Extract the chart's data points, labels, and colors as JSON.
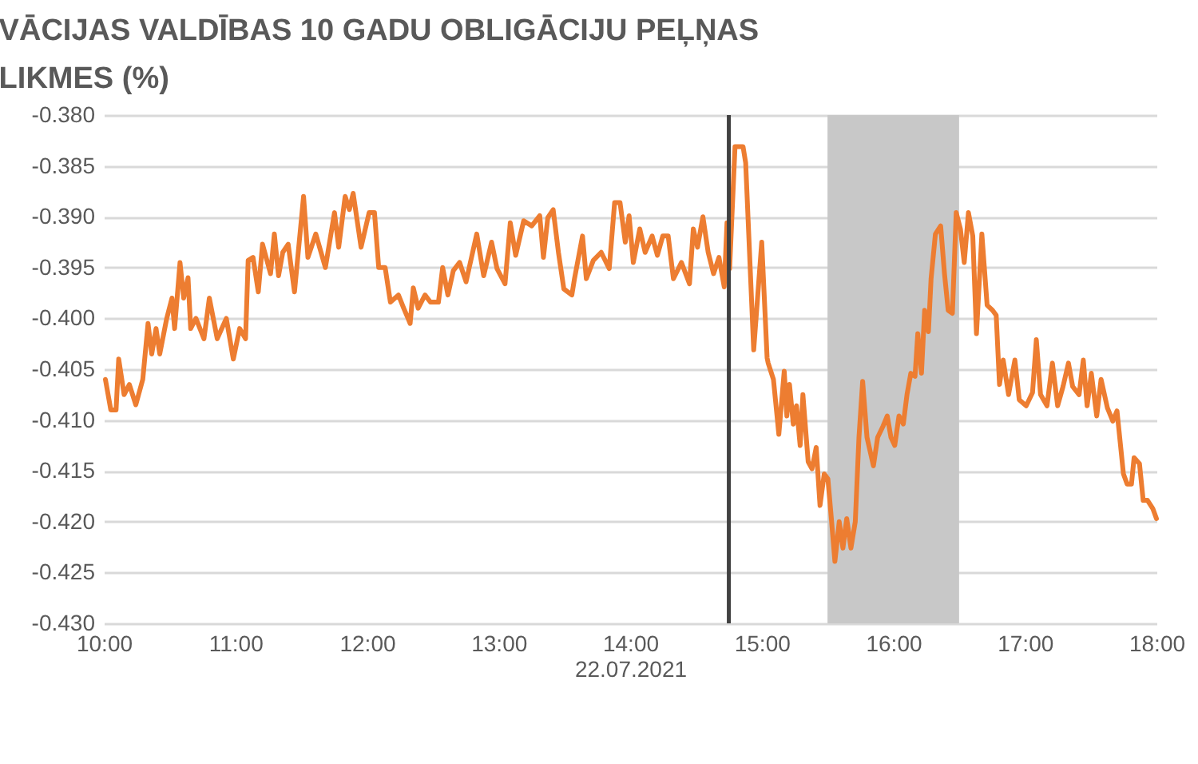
{
  "chart_data": {
    "type": "line",
    "title": [
      "VĀCIJAS VALDĪBAS 10 GADU OBLIGĀCIJU PEĻŅAS",
      "LIKMES (%)"
    ],
    "xlabel": "22.07.2021",
    "x": [
      10.012,
      10.053,
      10.093,
      10.113,
      10.154,
      10.194,
      10.243,
      10.296,
      10.336,
      10.364,
      10.397,
      10.425,
      10.478,
      10.518,
      10.538,
      10.579,
      10.607,
      10.64,
      10.66,
      10.7,
      10.761,
      10.802,
      10.862,
      10.931,
      10.984,
      11.032,
      11.077,
      11.097,
      11.134,
      11.174,
      11.206,
      11.267,
      11.296,
      11.328,
      11.36,
      11.401,
      11.449,
      11.518,
      11.551,
      11.611,
      11.684,
      11.753,
      11.785,
      11.834,
      11.866,
      11.895,
      11.955,
      12.016,
      12.057,
      12.089,
      12.138,
      12.178,
      12.239,
      12.279,
      12.328,
      12.352,
      12.389,
      12.441,
      12.482,
      12.543,
      12.575,
      12.615,
      12.656,
      12.704,
      12.753,
      12.834,
      12.887,
      12.947,
      12.988,
      13.049,
      13.089,
      13.13,
      13.191,
      13.252,
      13.313,
      13.341,
      13.374,
      13.415,
      13.455,
      13.496,
      13.557,
      13.577,
      13.638,
      13.667,
      13.72,
      13.78,
      13.841,
      13.882,
      13.923,
      13.963,
      13.992,
      14.024,
      14.073,
      14.114,
      14.167,
      14.207,
      14.248,
      14.289,
      14.329,
      14.39,
      14.451,
      14.48,
      14.512,
      14.553,
      14.593,
      14.634,
      14.675,
      14.715,
      14.736,
      14.756,
      14.797,
      14.858,
      14.878,
      14.939,
      15.0,
      15.041,
      15.049,
      15.089,
      15.13,
      15.171,
      15.191,
      15.211,
      15.24,
      15.264,
      15.292,
      15.313,
      15.353,
      15.382,
      15.414,
      15.443,
      15.475,
      15.503,
      15.528,
      15.556,
      15.589,
      15.617,
      15.646,
      15.678,
      15.711,
      15.739,
      15.767,
      15.8,
      15.849,
      15.881,
      15.922,
      15.954,
      15.982,
      16.011,
      16.043,
      16.076,
      16.104,
      16.133,
      16.165,
      16.186,
      16.214,
      16.238,
      16.267,
      16.287,
      16.32,
      16.36,
      16.389,
      16.417,
      16.449,
      16.478,
      16.51,
      16.539,
      16.571,
      16.604,
      16.632,
      16.673,
      16.713,
      16.754,
      16.782,
      16.807,
      16.835,
      16.876,
      16.924,
      16.957,
      17.01,
      17.058,
      17.087,
      17.119,
      17.168,
      17.209,
      17.249,
      17.29,
      17.331,
      17.363,
      17.412,
      17.444,
      17.473,
      17.505,
      17.546,
      17.579,
      17.627,
      17.668,
      17.7,
      17.749,
      17.777,
      17.81,
      17.83,
      17.871,
      17.899,
      17.932,
      17.972,
      18.0
    ],
    "series": [
      {
        "color": "#ed7d31",
        "values": [
          -0.406,
          -0.409,
          -0.409,
          -0.404,
          -0.4075,
          -0.4065,
          -0.4085,
          -0.406,
          -0.4005,
          -0.4035,
          -0.401,
          -0.4035,
          -0.4,
          -0.398,
          -0.401,
          -0.3945,
          -0.398,
          -0.396,
          -0.401,
          -0.4,
          -0.402,
          -0.398,
          -0.402,
          -0.4,
          -0.404,
          -0.401,
          -0.402,
          -0.3943,
          -0.394,
          -0.3974,
          -0.3927,
          -0.3956,
          -0.3917,
          -0.3958,
          -0.3935,
          -0.3927,
          -0.3974,
          -0.388,
          -0.394,
          -0.3917,
          -0.395,
          -0.3896,
          -0.393,
          -0.388,
          -0.3893,
          -0.3877,
          -0.393,
          -0.3896,
          -0.3896,
          -0.395,
          -0.395,
          -0.3984,
          -0.3977,
          -0.399,
          -0.4005,
          -0.397,
          -0.399,
          -0.3977,
          -0.3984,
          -0.3984,
          -0.395,
          -0.3977,
          -0.3953,
          -0.3945,
          -0.3964,
          -0.3917,
          -0.3958,
          -0.3925,
          -0.3951,
          -0.3966,
          -0.3906,
          -0.3938,
          -0.3904,
          -0.3909,
          -0.3899,
          -0.394,
          -0.3901,
          -0.3893,
          -0.3935,
          -0.3971,
          -0.3977,
          -0.3961,
          -0.3919,
          -0.3961,
          -0.3943,
          -0.3935,
          -0.3951,
          -0.3886,
          -0.3886,
          -0.3925,
          -0.3899,
          -0.3945,
          -0.3912,
          -0.3935,
          -0.3919,
          -0.3938,
          -0.3919,
          -0.3919,
          -0.3961,
          -0.3945,
          -0.3966,
          -0.3912,
          -0.393,
          -0.39,
          -0.3935,
          -0.3956,
          -0.394,
          -0.3969,
          -0.3906,
          -0.3951,
          -0.3831,
          -0.3831,
          -0.3847,
          -0.4031,
          -0.3925,
          -0.4039,
          -0.4044,
          -0.406,
          -0.4114,
          -0.4052,
          -0.4096,
          -0.4065,
          -0.4104,
          -0.4086,
          -0.4125,
          -0.4075,
          -0.4141,
          -0.4148,
          -0.4127,
          -0.4184,
          -0.4153,
          -0.4158,
          -0.4195,
          -0.4239,
          -0.42,
          -0.4226,
          -0.4197,
          -0.4226,
          -0.42,
          -0.4117,
          -0.4062,
          -0.4117,
          -0.4145,
          -0.4117,
          -0.4106,
          -0.4096,
          -0.4117,
          -0.4125,
          -0.4096,
          -0.4104,
          -0.4075,
          -0.4054,
          -0.4057,
          -0.4015,
          -0.4054,
          -0.3992,
          -0.4013,
          -0.3961,
          -0.3917,
          -0.3909,
          -0.3956,
          -0.3992,
          -0.3995,
          -0.3896,
          -0.3912,
          -0.3945,
          -0.3896,
          -0.3919,
          -0.4015,
          -0.3917,
          -0.3987,
          -0.3992,
          -0.3997,
          -0.4065,
          -0.4041,
          -0.4075,
          -0.4041,
          -0.408,
          -0.4086,
          -0.4073,
          -0.4021,
          -0.4075,
          -0.4086,
          -0.4044,
          -0.4086,
          -0.4067,
          -0.4044,
          -0.4067,
          -0.4075,
          -0.4041,
          -0.4086,
          -0.4054,
          -0.4096,
          -0.406,
          -0.4088,
          -0.4101,
          -0.4091,
          -0.4153,
          -0.4163,
          -0.4163,
          -0.4137,
          -0.4143,
          -0.4179,
          -0.4179,
          -0.4187,
          -0.4197
        ]
      }
    ],
    "xlim": [
      10,
      18
    ],
    "xticks": [
      {
        "value": 10,
        "label": "10:00"
      },
      {
        "value": 11,
        "label": "11:00"
      },
      {
        "value": 12,
        "label": "12:00"
      },
      {
        "value": 13,
        "label": "13:00"
      },
      {
        "value": 14,
        "label": "14:00"
      },
      {
        "value": 15,
        "label": "15:00"
      },
      {
        "value": 16,
        "label": "16:00"
      },
      {
        "value": 17,
        "label": "17:00"
      },
      {
        "value": 18,
        "label": "18:00"
      }
    ],
    "ylim": [
      -0.43,
      -0.38
    ],
    "yticks": [
      {
        "value": -0.38,
        "label": "-0.380"
      },
      {
        "value": -0.385,
        "label": "-0.385"
      },
      {
        "value": -0.39,
        "label": "-0.390"
      },
      {
        "value": -0.395,
        "label": "-0.395"
      },
      {
        "value": -0.4,
        "label": "-0.400"
      },
      {
        "value": -0.405,
        "label": "-0.405"
      },
      {
        "value": -0.41,
        "label": "-0.410"
      },
      {
        "value": -0.415,
        "label": "-0.415"
      },
      {
        "value": -0.42,
        "label": "-0.420"
      },
      {
        "value": -0.425,
        "label": "-0.425"
      },
      {
        "value": -0.43,
        "label": "-0.430"
      }
    ],
    "grid": "y",
    "ref_lines": [
      {
        "axis": "x",
        "value": 14.75,
        "color": "#404040"
      }
    ],
    "bands": [
      {
        "axis": "x",
        "from": 15.5,
        "to": 16.5,
        "color": "#c8c8c8"
      }
    ]
  }
}
